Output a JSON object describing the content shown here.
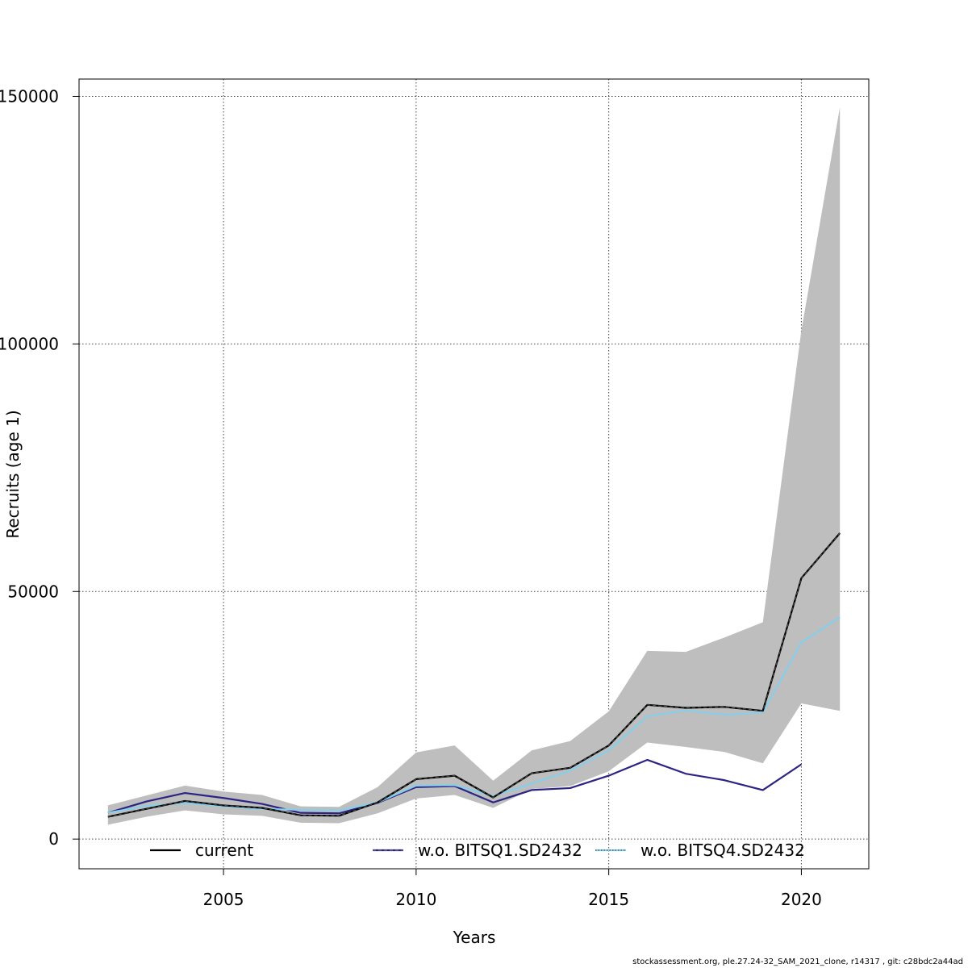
{
  "chart_data": {
    "type": "line",
    "xlabel": "Years",
    "ylabel": "Recruits (age 1)",
    "xlim": [
      2001.25,
      2021.75
    ],
    "ylim": [
      -6000,
      153500
    ],
    "xticks": [
      2005,
      2010,
      2015,
      2020
    ],
    "yticks": [
      0,
      50000,
      100000,
      150000
    ],
    "grid": true,
    "legend_position": "bottom",
    "x": [
      2002,
      2003,
      2004,
      2005,
      2006,
      2007,
      2008,
      2009,
      2010,
      2011,
      2012,
      2013,
      2014,
      2015,
      2016,
      2017,
      2018,
      2019,
      2020,
      2021
    ],
    "confidence_band": {
      "color": "#bebebe",
      "lower": [
        2900,
        4500,
        5800,
        5000,
        4700,
        3300,
        3200,
        5200,
        8200,
        8900,
        6300,
        10100,
        10700,
        13700,
        19500,
        18600,
        17600,
        15300,
        27400,
        25900
      ],
      "upper": [
        6800,
        8800,
        10800,
        9600,
        8900,
        6600,
        6500,
        10500,
        17500,
        18900,
        11800,
        17900,
        19800,
        25800,
        38000,
        37800,
        40700,
        43800,
        102700,
        147800
      ]
    },
    "series": [
      {
        "name": "current",
        "color": "#000000",
        "style": "solid",
        "values": [
          4500,
          6100,
          7700,
          6800,
          6300,
          4800,
          4700,
          7400,
          12100,
          12800,
          8400,
          13300,
          14400,
          18900,
          27100,
          26500,
          26700,
          25900,
          52700,
          61800
        ]
      },
      {
        "name": "w.o. BITSQ1.SD2432",
        "color": "#2c2483",
        "style": "dashed",
        "values": [
          5300,
          7600,
          9300,
          8300,
          7100,
          5300,
          5200,
          7300,
          10500,
          10700,
          7400,
          9900,
          10300,
          12800,
          16000,
          13200,
          11900,
          9900,
          15100,
          null
        ]
      },
      {
        "name": "w.o. BITSQ4.SD2432",
        "color": "#87ceeb",
        "style": "dotted",
        "values": [
          5300,
          6700,
          7300,
          6600,
          6100,
          5900,
          5800,
          7400,
          10800,
          10900,
          8700,
          11200,
          13800,
          17900,
          24800,
          26000,
          25100,
          25600,
          39700,
          44800
        ]
      }
    ]
  },
  "footer": "stockassessment.org, ple.27.24-32_SAM_2021_clone, r14317 , git: c28bdc2a44ad"
}
